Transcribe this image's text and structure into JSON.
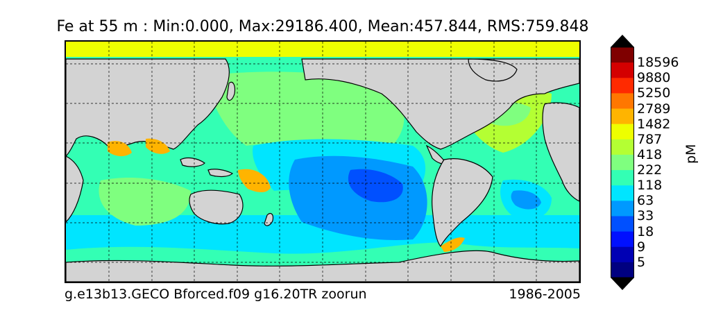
{
  "title": "Fe at 55 m : Min:0.000, Max:29186.400, Mean:457.844, RMS:759.848",
  "footer": {
    "case_name": "g.e13b13.GECO Bforced.f09 g16.20TR zoorun",
    "years": "1986-2005"
  },
  "colorbar": {
    "unit": "pM",
    "levels": [
      "18596",
      "9880",
      "5250",
      "2789",
      "1482",
      "787",
      "418",
      "222",
      "118",
      "63",
      "33",
      "18",
      "9",
      "5"
    ],
    "colors": [
      "#7f0000",
      "#d40000",
      "#ff2a00",
      "#ff7700",
      "#ffb400",
      "#eeff00",
      "#b4ff33",
      "#7fff7f",
      "#33ffb4",
      "#00e5ff",
      "#0099ff",
      "#0050ff",
      "#0010ff",
      "#0000b4",
      "#000080"
    ],
    "under_color": "#000000",
    "over_color": "#000000"
  },
  "map": {
    "land_color": "#d3d3d3",
    "projection": "cylindrical",
    "grid": "dashed"
  }
}
